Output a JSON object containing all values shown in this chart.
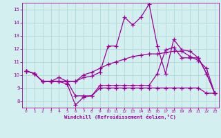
{
  "bg_color": "#d4efef",
  "grid_color": "#b0d8d8",
  "line_color": "#990099",
  "marker": "+",
  "marker_size": 4,
  "linewidth": 0.9,
  "xlabel": "Windchill (Refroidissement éolien,°C)",
  "xlabel_color": "#990099",
  "tick_color": "#990099",
  "xlim": [
    -0.5,
    23.5
  ],
  "ylim": [
    7.5,
    15.5
  ],
  "yticks": [
    8,
    9,
    10,
    11,
    12,
    13,
    14,
    15
  ],
  "xticks": [
    0,
    1,
    2,
    3,
    4,
    5,
    6,
    7,
    8,
    9,
    10,
    11,
    12,
    13,
    14,
    15,
    16,
    17,
    18,
    19,
    20,
    21,
    22,
    23
  ],
  "series": [
    [
      10.3,
      10.1,
      9.5,
      9.5,
      9.5,
      9.3,
      7.7,
      8.3,
      8.4,
      9.0,
      9.0,
      9.0,
      9.0,
      9.0,
      9.0,
      9.0,
      9.0,
      9.0,
      9.0,
      9.0,
      9.0,
      9.0,
      8.6,
      8.6
    ],
    [
      10.3,
      10.1,
      9.5,
      9.5,
      9.5,
      9.5,
      9.5,
      9.8,
      9.9,
      10.2,
      12.2,
      12.2,
      14.4,
      13.8,
      14.4,
      15.4,
      12.2,
      10.1,
      12.7,
      11.9,
      11.8,
      11.3,
      10.1,
      8.6
    ],
    [
      10.3,
      10.1,
      9.5,
      9.5,
      9.8,
      9.5,
      8.4,
      8.4,
      8.4,
      9.2,
      9.2,
      9.2,
      9.2,
      9.2,
      9.2,
      9.2,
      10.1,
      11.9,
      12.1,
      11.3,
      11.3,
      11.3,
      10.1,
      8.6
    ],
    [
      10.3,
      10.1,
      9.5,
      9.5,
      9.5,
      9.5,
      9.5,
      10.0,
      10.2,
      10.5,
      10.8,
      11.0,
      11.2,
      11.4,
      11.5,
      11.6,
      11.6,
      11.7,
      11.8,
      11.8,
      11.4,
      11.1,
      10.5,
      8.6
    ]
  ]
}
